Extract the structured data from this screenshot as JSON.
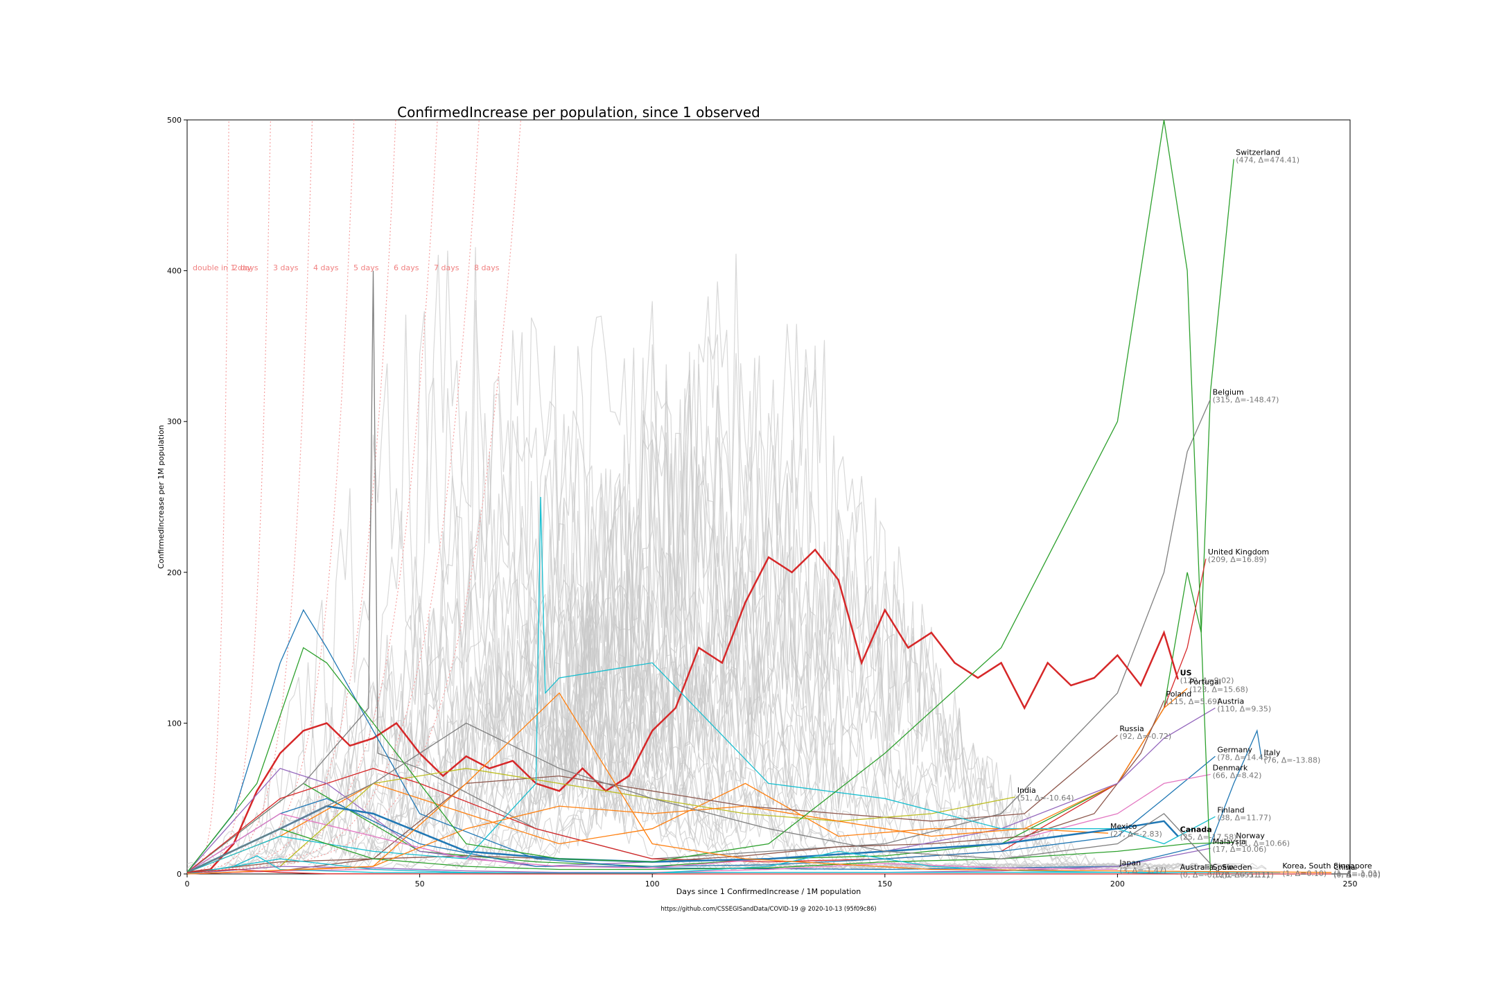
{
  "chart_data": {
    "type": "line",
    "title": "ConfirmedIncrease per population, since 1 observed",
    "xlabel": "Days since 1 ConfirmedIncrease / 1M population",
    "ylabel": "ConfirmedIncrease per 1M population",
    "footer": "https://github.com/CSSEGISandData/COVID-19 @ 2020-10-13 (95f09c86)",
    "xlim": [
      0,
      250
    ],
    "ylim": [
      0,
      500
    ],
    "xticks": [
      0,
      50,
      100,
      150,
      200,
      250
    ],
    "yticks": [
      0,
      100,
      200,
      300,
      400,
      500
    ],
    "grid": false,
    "doubling_labels": [
      "double in 1 day",
      "2 days",
      "3 days",
      "4 days",
      "5 days",
      "6 days",
      "7 days",
      "8 days"
    ],
    "doubling_days": [
      1,
      2,
      3,
      4,
      5,
      6,
      7,
      8
    ],
    "series": [
      {
        "name": "Switzerland",
        "value_label": "(474, Δ=474.41)",
        "color": "#2ca02c",
        "bold": false,
        "x": [
          0,
          25,
          50,
          75,
          100,
          125,
          150,
          175,
          200,
          210,
          215,
          218,
          220,
          225
        ],
        "y": [
          1,
          60,
          15,
          8,
          5,
          10,
          12,
          20,
          60,
          110,
          200,
          160,
          320,
          474
        ]
      },
      {
        "name": "Belgium",
        "value_label": "(315, Δ=-148.47)",
        "color": "#7f7f7f",
        "bold": false,
        "x": [
          0,
          25,
          39,
          40,
          41,
          50,
          75,
          100,
          125,
          150,
          175,
          200,
          210,
          215,
          220
        ],
        "y": [
          1,
          60,
          110,
          400,
          80,
          70,
          30,
          10,
          15,
          20,
          40,
          120,
          200,
          280,
          315
        ]
      },
      {
        "name": "United Kingdom",
        "value_label": "(209, Δ=16.89)",
        "color": "#d62728",
        "bold": false,
        "x": [
          0,
          20,
          40,
          50,
          75,
          100,
          125,
          150,
          175,
          200,
          210,
          215,
          219
        ],
        "y": [
          1,
          50,
          70,
          60,
          30,
          10,
          8,
          10,
          15,
          60,
          110,
          150,
          209
        ]
      },
      {
        "name": "US",
        "value_label": "(129, Δ=9.02)",
        "color": "#d62728",
        "bold": true,
        "x": [
          0,
          5,
          10,
          15,
          20,
          25,
          30,
          35,
          40,
          45,
          50,
          55,
          60,
          65,
          70,
          75,
          80,
          85,
          90,
          95,
          100,
          105,
          110,
          115,
          120,
          125,
          130,
          135,
          140,
          145,
          150,
          155,
          160,
          165,
          170,
          175,
          180,
          185,
          190,
          195,
          200,
          205,
          210,
          213
        ],
        "y": [
          1,
          3,
          20,
          55,
          80,
          95,
          100,
          85,
          90,
          100,
          80,
          65,
          78,
          70,
          75,
          60,
          55,
          70,
          55,
          65,
          95,
          110,
          150,
          140,
          180,
          210,
          200,
          215,
          195,
          140,
          175,
          150,
          160,
          140,
          130,
          140,
          110,
          140,
          125,
          130,
          145,
          125,
          160,
          129
        ]
      },
      {
        "name": "Portugal",
        "value_label": "(123, Δ=15.68)",
        "color": "#ff7f0e",
        "bold": false,
        "x": [
          0,
          20,
          40,
          60,
          80,
          100,
          120,
          140,
          160,
          180,
          200,
          210,
          215
        ],
        "y": [
          1,
          25,
          60,
          40,
          20,
          30,
          60,
          25,
          30,
          30,
          60,
          110,
          123
        ]
      },
      {
        "name": "Poland",
        "value_label": "(115, Δ=5.69)",
        "color": "#8c564b",
        "bold": false,
        "x": [
          0,
          20,
          40,
          60,
          80,
          100,
          120,
          140,
          160,
          180,
          195,
          205,
          210
        ],
        "y": [
          1,
          8,
          10,
          12,
          10,
          8,
          12,
          18,
          20,
          25,
          40,
          80,
          115
        ]
      },
      {
        "name": "Austria",
        "value_label": "(110, Δ=9.35)",
        "color": "#9467bd",
        "bold": false,
        "x": [
          0,
          20,
          30,
          50,
          75,
          100,
          125,
          150,
          175,
          200,
          210,
          221
        ],
        "y": [
          1,
          70,
          60,
          15,
          5,
          8,
          10,
          15,
          30,
          60,
          90,
          110
        ]
      },
      {
        "name": "Russia",
        "value_label": "(92, Δ=-0.72)",
        "color": "#8c564b",
        "bold": false,
        "x": [
          0,
          20,
          40,
          60,
          80,
          100,
          120,
          140,
          160,
          180,
          200
        ],
        "y": [
          0,
          2,
          10,
          60,
          65,
          55,
          45,
          40,
          35,
          40,
          92
        ]
      },
      {
        "name": "Germany",
        "value_label": "(78, Δ=14.45)",
        "color": "#1f77b4",
        "bold": false,
        "x": [
          0,
          20,
          30,
          50,
          75,
          100,
          125,
          150,
          175,
          200,
          210,
          221
        ],
        "y": [
          1,
          40,
          50,
          20,
          5,
          5,
          6,
          10,
          15,
          25,
          50,
          78
        ]
      },
      {
        "name": "Italy",
        "value_label": "(76, Δ=-13.88)",
        "color": "#1f77b4",
        "bold": false,
        "x": [
          0,
          10,
          20,
          25,
          30,
          50,
          75,
          100,
          150,
          200,
          220,
          225,
          230,
          231
        ],
        "y": [
          1,
          40,
          140,
          175,
          150,
          40,
          10,
          4,
          3,
          5,
          20,
          60,
          95,
          76
        ]
      },
      {
        "name": "Denmark",
        "value_label": "(66, Δ=8.42)",
        "color": "#e377c2",
        "bold": false,
        "x": [
          0,
          20,
          40,
          60,
          80,
          100,
          125,
          150,
          175,
          200,
          210,
          220
        ],
        "y": [
          1,
          40,
          25,
          10,
          5,
          4,
          10,
          15,
          20,
          40,
          60,
          66
        ]
      },
      {
        "name": "India",
        "value_label": "(51, Δ=-10.64)",
        "color": "#bcbd22",
        "bold": false,
        "x": [
          0,
          20,
          40,
          60,
          80,
          100,
          120,
          140,
          160,
          178
        ],
        "y": [
          0,
          5,
          60,
          70,
          60,
          50,
          40,
          35,
          40,
          51
        ]
      },
      {
        "name": "Finland",
        "value_label": "(38, Δ=11.77)",
        "color": "#17becf",
        "bold": false,
        "x": [
          0,
          20,
          40,
          60,
          75,
          76,
          77,
          80,
          100,
          125,
          150,
          175,
          200,
          210,
          221
        ],
        "y": [
          1,
          25,
          15,
          10,
          60,
          250,
          120,
          130,
          140,
          60,
          50,
          30,
          30,
          20,
          38
        ]
      },
      {
        "name": "Mexico",
        "value_label": "(27, Δ=-2.83)",
        "color": "#ff7f0e",
        "bold": false,
        "x": [
          0,
          20,
          40,
          60,
          80,
          100,
          120,
          140,
          160,
          180,
          198
        ],
        "y": [
          0,
          2,
          5,
          30,
          45,
          40,
          45,
          35,
          25,
          30,
          27
        ]
      },
      {
        "name": "Canada",
        "value_label": "(25, Δ=-17.58)",
        "color": "#1f77b4",
        "bold": true,
        "x": [
          0,
          20,
          30,
          40,
          60,
          80,
          100,
          125,
          150,
          175,
          200,
          210,
          213
        ],
        "y": [
          1,
          30,
          45,
          40,
          15,
          10,
          8,
          10,
          15,
          20,
          30,
          35,
          25
        ]
      },
      {
        "name": "Norway",
        "value_label": "(21, Δ=10.66)",
        "color": "#2ca02c",
        "bold": false,
        "x": [
          0,
          20,
          40,
          60,
          80,
          100,
          125,
          150,
          175,
          200,
          215,
          225
        ],
        "y": [
          1,
          30,
          10,
          5,
          3,
          3,
          4,
          8,
          10,
          15,
          20,
          21
        ]
      },
      {
        "name": "Malaysia",
        "value_label": "(17, Δ=10.06)",
        "color": "#9467bd",
        "bold": false,
        "x": [
          0,
          20,
          40,
          60,
          80,
          100,
          125,
          150,
          175,
          200,
          220
        ],
        "y": [
          0,
          5,
          4,
          2,
          1,
          1,
          1,
          1,
          2,
          5,
          17
        ]
      },
      {
        "name": "Japan",
        "value_label": "(3, Δ=-1.47)",
        "color": "#e377c2",
        "bold": false,
        "x": [
          0,
          20,
          40,
          60,
          80,
          100,
          125,
          150,
          175,
          200
        ],
        "y": [
          0,
          2,
          3,
          1,
          0.5,
          1,
          3,
          7,
          4,
          3
        ]
      },
      {
        "name": "Australia",
        "value_label": "(0, Δ=-0.12)",
        "color": "#17becf",
        "bold": false,
        "x": [
          0,
          20,
          40,
          60,
          80,
          100,
          125,
          140,
          160,
          180,
          200,
          213
        ],
        "y": [
          0,
          10,
          3,
          1,
          0.5,
          0.5,
          5,
          15,
          5,
          2,
          1,
          0
        ]
      },
      {
        "name": "Spain",
        "value_label": "(0, Δ=-651.11)",
        "color": "#2ca02c",
        "bold": false,
        "x": [
          0,
          15,
          25,
          30,
          40,
          60,
          80,
          100,
          125,
          150,
          175,
          200,
          210,
          215,
          220
        ],
        "y": [
          1,
          60,
          150,
          140,
          100,
          20,
          10,
          8,
          20,
          80,
          150,
          300,
          500,
          400,
          0
        ]
      },
      {
        "name": "Sweden",
        "value_label": "(0, Δ=-51.11)",
        "color": "#7f7f7f",
        "bold": false,
        "x": [
          0,
          20,
          40,
          60,
          80,
          100,
          125,
          150,
          175,
          200,
          210,
          222
        ],
        "y": [
          1,
          30,
          60,
          100,
          70,
          50,
          30,
          15,
          10,
          20,
          40,
          0
        ]
      },
      {
        "name": "Korea, South",
        "value_label": "(1, Δ=0.10)",
        "color": "#17becf",
        "bold": false,
        "x": [
          0,
          10,
          15,
          20,
          40,
          80,
          120,
          160,
          200,
          235
        ],
        "y": [
          0,
          5,
          12,
          3,
          1,
          0.5,
          1,
          1,
          1,
          1
        ]
      },
      {
        "name": "Singapore",
        "value_label": "(1, Δ=-1.01)",
        "color": "#ff7f0e",
        "bold": false,
        "x": [
          0,
          40,
          60,
          80,
          100,
          120,
          160,
          200,
          246
        ],
        "y": [
          0,
          5,
          60,
          120,
          20,
          10,
          3,
          2,
          1
        ]
      },
      {
        "name": "China",
        "value_label": "(0, Δ=-0.00)",
        "color": "#d62728",
        "bold": false,
        "x": [
          0,
          10,
          20,
          30,
          50,
          100,
          150,
          200,
          246
        ],
        "y": [
          1,
          3,
          1,
          0.1,
          0.05,
          0.01,
          0.01,
          0.01,
          0
        ]
      }
    ]
  }
}
